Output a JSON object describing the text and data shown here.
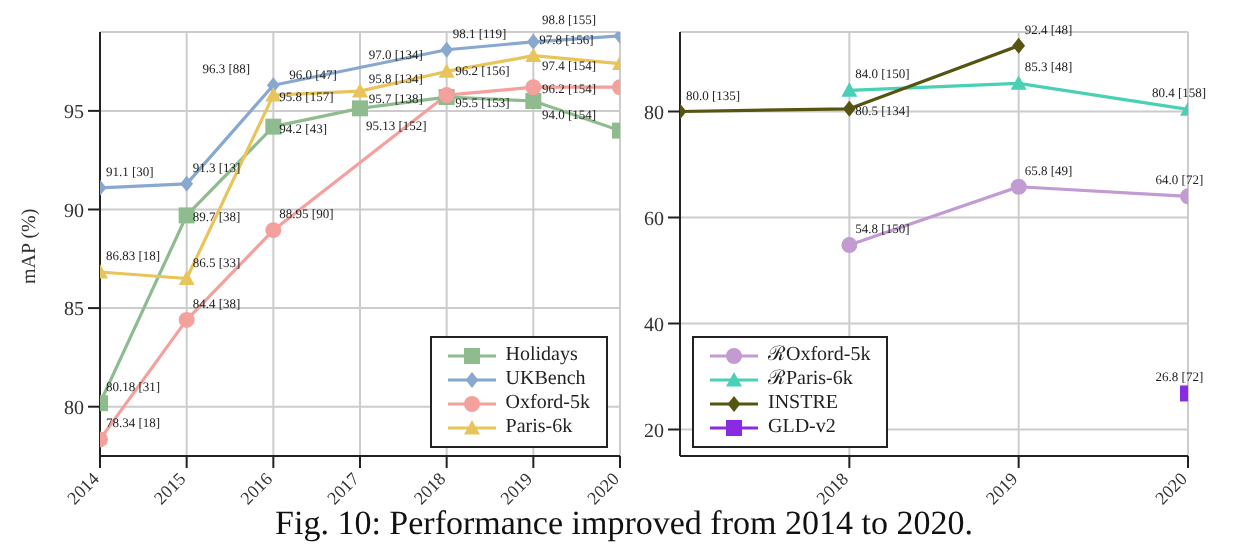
{
  "chart_data": [
    {
      "type": "line",
      "ylabel": "mAP (%)",
      "x": [
        2014,
        2015,
        2016,
        2017,
        2018,
        2019,
        2020
      ],
      "xlim": [
        2014,
        2020
      ],
      "xticks": [
        2014,
        2015,
        2016,
        2017,
        2018,
        2019,
        2020
      ],
      "ylim": [
        77.5,
        99
      ],
      "yticks": [
        80,
        85,
        90,
        95
      ],
      "grid": true,
      "legend": "bottom right",
      "annotations": [
        "Fig. 10: Performance improved from 2014 to 2020."
      ],
      "series": [
        {
          "name": "Holidays",
          "color": "#8fbc8f",
          "marker": "square",
          "values": [
            80.18,
            89.7,
            94.2,
            95.13,
            95.7,
            95.5,
            94.0
          ],
          "value_labels": [
            "80.18 [31]",
            "89.7 [38]",
            "94.2 [43]",
            "95.13 [152]",
            "95.7 [138]",
            "95.5 [153]",
            "94.0 [154]"
          ]
        },
        {
          "name": "UKBench",
          "color": "#88a8d0",
          "marker": "diamond",
          "values": [
            91.1,
            91.3,
            96.3,
            null,
            98.1,
            98.5,
            98.8
          ],
          "value_labels": [
            "91.1 [30]",
            "91.3 [13]",
            "96.3 [88]",
            null,
            "98.1 [119]",
            null,
            "98.8 [155]"
          ]
        },
        {
          "name": "Oxford-5k",
          "color": "#f4a09c",
          "marker": "circle",
          "values": [
            78.34,
            84.4,
            88.95,
            null,
            95.8,
            96.2,
            96.2
          ],
          "value_labels": [
            "78.34 [18]",
            "84.4 [38]",
            "88.95 [90]",
            null,
            "95.8 [134]",
            "96.2 [156]",
            "96.2 [154]"
          ]
        },
        {
          "name": "Paris-6k",
          "color": "#e8c45a",
          "marker": "triangle",
          "values": [
            86.83,
            86.5,
            95.8,
            96.0,
            97.0,
            97.8,
            97.4
          ],
          "value_labels": [
            "86.83 [18]",
            "86.5 [33]",
            "95.8 [157]",
            "96.0 [47]",
            "97.0 [134]",
            "97.8 [156]",
            "97.4 [154]"
          ]
        }
      ]
    },
    {
      "type": "line",
      "xlim": [
        2017,
        2020
      ],
      "xticks": [
        2018,
        2019,
        2020
      ],
      "ylim": [
        15,
        95
      ],
      "yticks": [
        20,
        40,
        60,
        80
      ],
      "grid": true,
      "legend": "bottom left",
      "series": [
        {
          "name": "ℛOxford-5k",
          "color": "#c39bd3",
          "marker": "circle",
          "x": [
            2018,
            2019,
            2020
          ],
          "values": [
            54.8,
            65.8,
            64.0
          ],
          "value_labels": [
            "54.8 [150]",
            "65.8 [49]",
            "64.0 [72]"
          ]
        },
        {
          "name": "ℛParis-6k",
          "color": "#48d1b4",
          "marker": "triangle",
          "x": [
            2018,
            2019,
            2020
          ],
          "values": [
            84.0,
            85.3,
            80.4
          ],
          "value_labels": [
            "84.0 [150]",
            "85.3 [48]",
            "80.4 [158]"
          ]
        },
        {
          "name": "INSTRE",
          "color": "#555511",
          "marker": "diamond",
          "x": [
            2017,
            2018,
            2019
          ],
          "values": [
            80.0,
            80.5,
            92.4
          ],
          "value_labels": [
            "80.0 [135]",
            "80.5 [134]",
            "92.4 [48]"
          ]
        },
        {
          "name": "GLD-v2",
          "color": "#8a2be2",
          "marker": "square",
          "x": [
            2020
          ],
          "values": [
            26.8
          ],
          "value_labels": [
            "26.8 [72]"
          ]
        }
      ]
    }
  ]
}
